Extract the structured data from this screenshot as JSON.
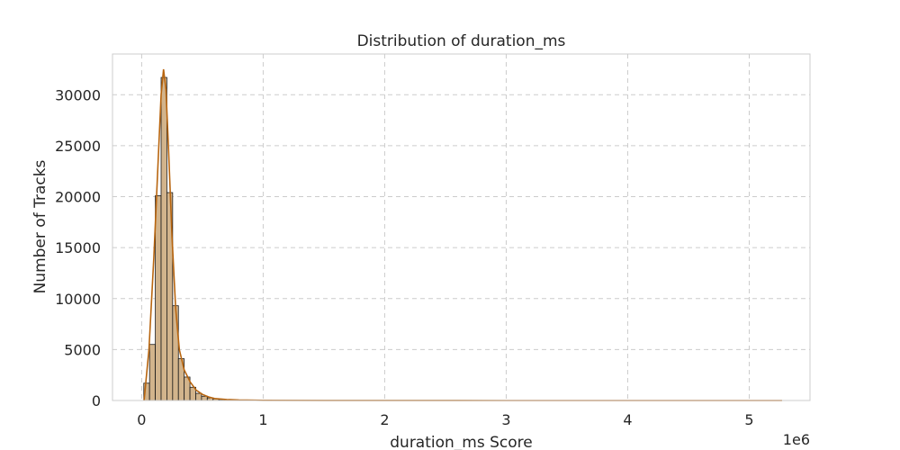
{
  "chart_data": {
    "type": "bar",
    "title": "Distribution of duration_ms",
    "xlabel": "duration_ms Score",
    "ylabel": "Number of Tracks",
    "x_offset_label": "1e6",
    "xlim": [
      -0.24,
      5.5
    ],
    "ylim": [
      0,
      34000
    ],
    "x_ticks": [
      0,
      1,
      2,
      3,
      4,
      5
    ],
    "x_tick_labels": [
      "0",
      "1",
      "2",
      "3",
      "4",
      "5"
    ],
    "y_ticks": [
      0,
      5000,
      10000,
      15000,
      20000,
      25000,
      30000
    ],
    "y_tick_labels": [
      "0",
      "5000",
      "10000",
      "15000",
      "20000",
      "25000",
      "30000"
    ],
    "grid": true,
    "bin_width": 0.0475,
    "bins_start": [
      0.0175,
      0.065,
      0.1125,
      0.16,
      0.2075,
      0.255,
      0.3025,
      0.35,
      0.3975,
      0.445,
      0.4925,
      0.54,
      0.5875,
      0.635,
      0.6825,
      0.73,
      0.7775
    ],
    "counts": [
      1700,
      5500,
      20100,
      31700,
      20400,
      9300,
      4100,
      2300,
      1300,
      700,
      420,
      260,
      160,
      100,
      60,
      40,
      25
    ],
    "kde_x": [
      0.02,
      0.06,
      0.1,
      0.13,
      0.16,
      0.18,
      0.2,
      0.22,
      0.25,
      0.28,
      0.31,
      0.35,
      0.4,
      0.45,
      0.5,
      0.55,
      0.6,
      0.7,
      0.8,
      1.0,
      1.5,
      2.0,
      3.0,
      4.0,
      5.0,
      5.27
    ],
    "kde_y": [
      0,
      5000,
      14000,
      22000,
      30000,
      32500,
      30500,
      25000,
      16000,
      9000,
      5000,
      3000,
      1800,
      1000,
      600,
      350,
      200,
      100,
      50,
      20,
      5,
      2,
      1,
      0,
      0,
      0
    ],
    "colors": {
      "bar_fill": "#d2b48c",
      "bar_edge": "#1a1a1a",
      "kde_line": "#b8650f",
      "grid": "#cccccc",
      "spine": "#cccccc"
    }
  }
}
